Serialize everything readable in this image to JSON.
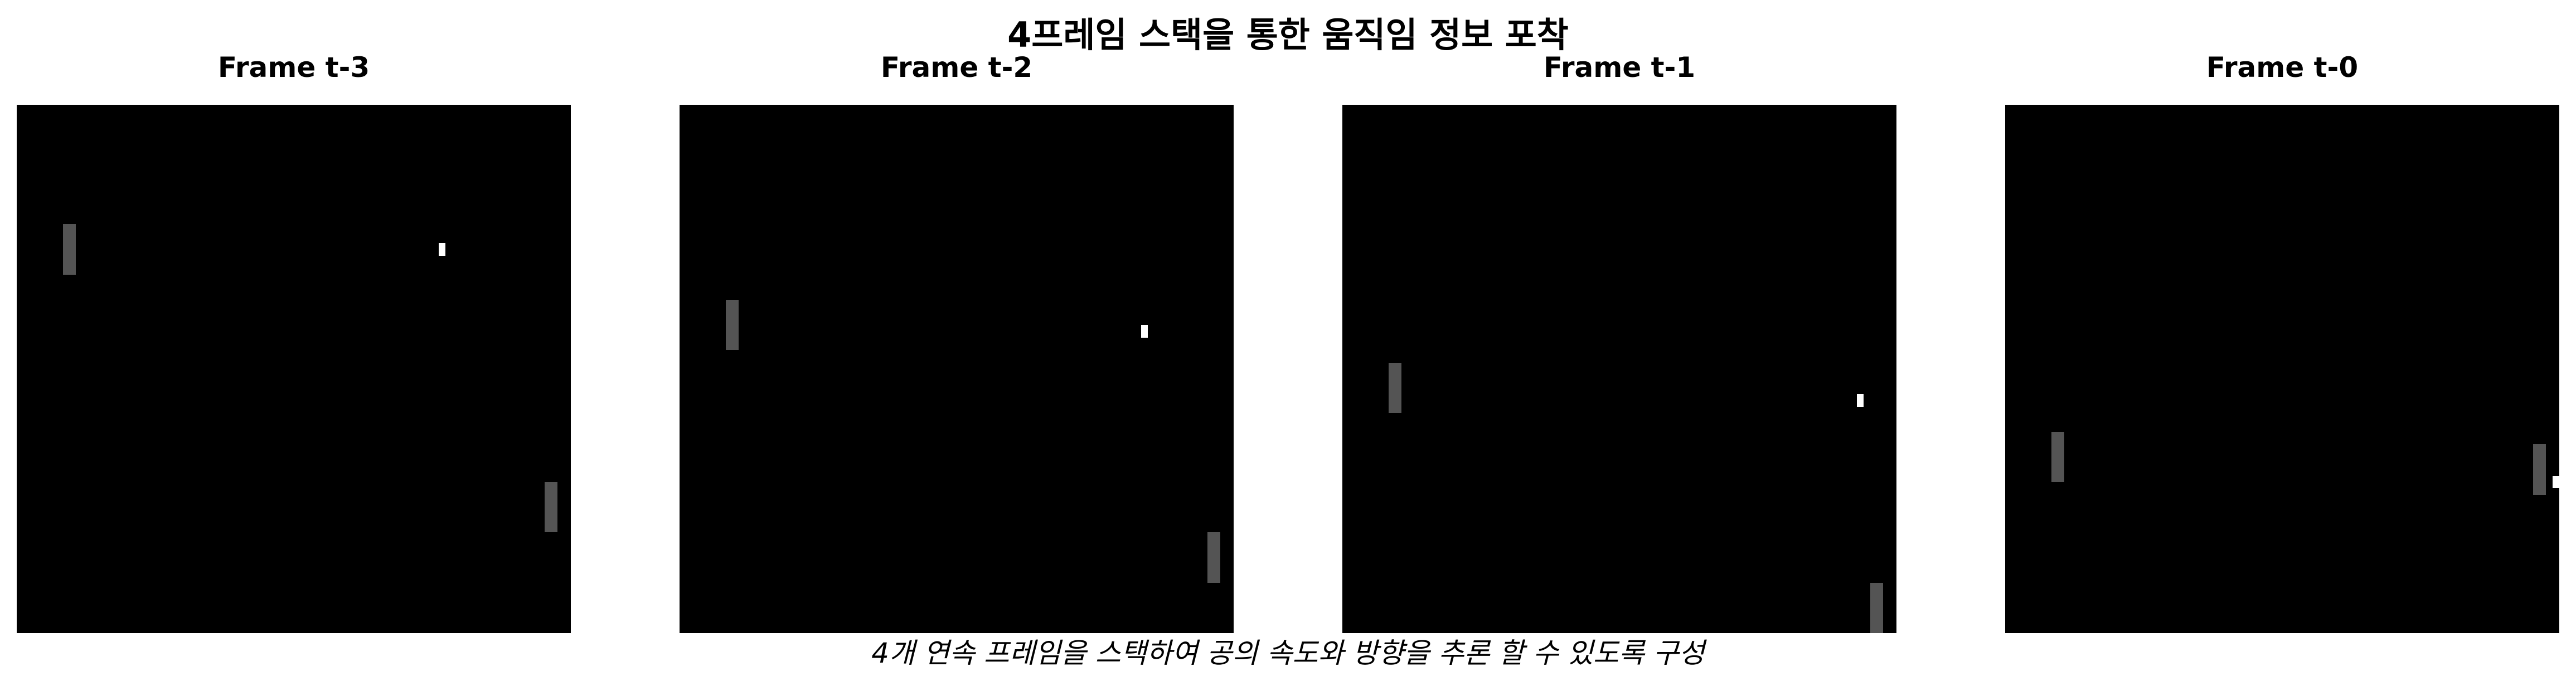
{
  "title": "4프레임 스택을 통한 움직임 정보 포착",
  "caption": "4개 연속 프레임을 스택하여 공의 속도와 방향을 추론 할 수 있도록 구성",
  "colors": {
    "background": "#000000",
    "paddle": "#545454",
    "ball": "#ffffff"
  },
  "grid": {
    "width": 84,
    "height": 84
  },
  "frames": [
    {
      "label": "Frame t-3",
      "left_paddle": {
        "col": 7,
        "row": 19
      },
      "right_paddle": {
        "col": 80,
        "row": 60
      },
      "ball": {
        "col": 64,
        "row": 22
      }
    },
    {
      "label": "Frame t-2",
      "left_paddle": {
        "col": 7,
        "row": 31
      },
      "right_paddle": {
        "col": 80,
        "row": 68
      },
      "ball": {
        "col": 70,
        "row": 35
      }
    },
    {
      "label": "Frame t-1",
      "left_paddle": {
        "col": 7,
        "row": 41
      },
      "right_paddle": {
        "col": 80,
        "row": 82
      },
      "ball": {
        "col": 78,
        "row": 46
      }
    },
    {
      "label": "Frame t-0",
      "left_paddle": {
        "col": 7,
        "row": 52
      },
      "right_paddle": {
        "col": 80,
        "row": 54
      },
      "ball": {
        "col": 85,
        "row": 59
      }
    }
  ]
}
